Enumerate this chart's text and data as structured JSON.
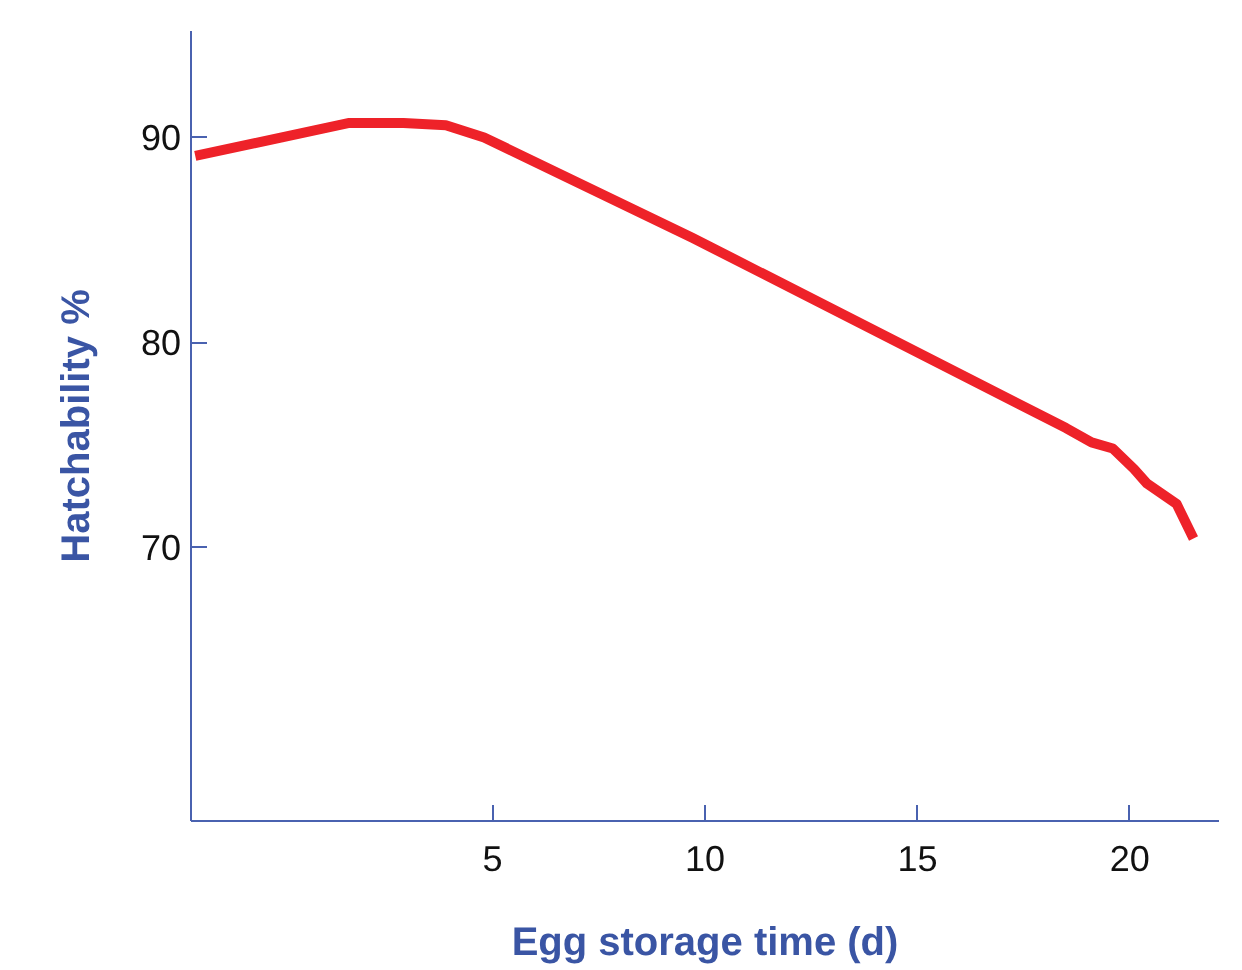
{
  "chart_data": {
    "type": "line",
    "xlabel": "Egg storage time (d)",
    "ylabel": "Hatchability %",
    "x": [
      -2.0,
      1.6,
      2.9,
      3.9,
      4.8,
      9.7,
      18.5,
      19.1,
      19.6,
      20.1,
      20.4,
      21.1,
      21.5
    ],
    "series": [
      {
        "color": "#ee2229",
        "values": [
          89.1,
          90.7,
          90.7,
          90.6,
          90.0,
          85.1,
          75.8,
          75.1,
          74.8,
          73.8,
          73.1,
          72.1,
          70.4
        ]
      }
    ],
    "xlim": [
      -2.1,
      22.1
    ],
    "ylim": [
      56.6,
      95.2
    ],
    "xticks": [
      5,
      10,
      15,
      20
    ],
    "yticks": [
      70,
      80,
      90
    ],
    "grid": false,
    "marker": "none",
    "line_style": "solid"
  }
}
